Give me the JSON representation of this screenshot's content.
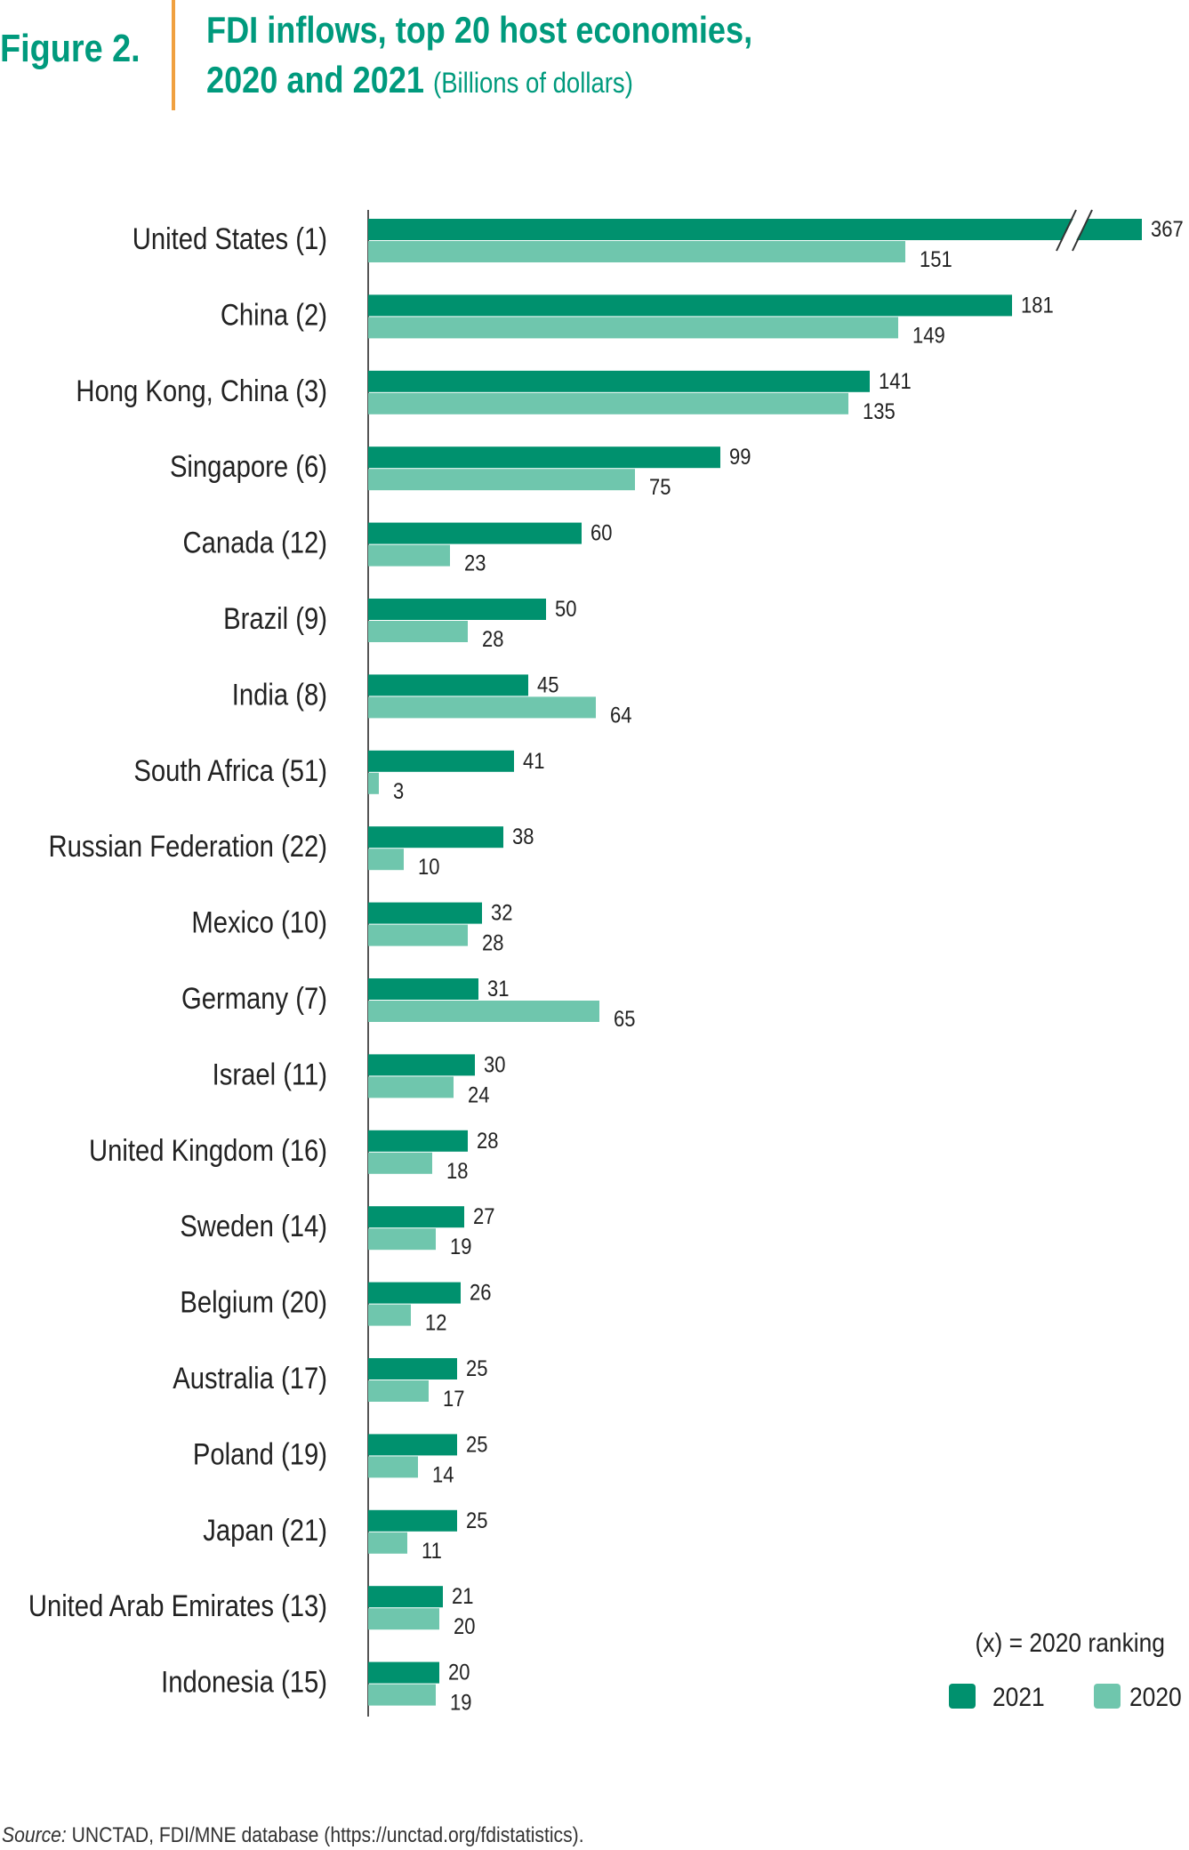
{
  "header": {
    "figure_label": "Figure 2.",
    "title_line1": "FDI inflows, top 20 host economies,",
    "title_line2": "2020 and 2021",
    "title_unit": "(Billions of dollars)"
  },
  "legend": {
    "note": "(x) = 2020  ranking",
    "position": "bottom-right"
  },
  "colors": {
    "series_2021": "#00916e",
    "series_2020": "#6fc6ad",
    "accent": "#009a7d",
    "divider": "#f0a040"
  },
  "chart_data": {
    "type": "bar",
    "orientation": "horizontal",
    "title": "FDI inflows, top 20 host economies, 2020 and 2021",
    "unit": "Billions of dollars",
    "axis_break": "United States 2021 bar broken",
    "grid": false,
    "categories": [
      "United States (1)",
      "China (2)",
      "Hong Kong, China (3)",
      "Singapore (6)",
      "Canada (12)",
      "Brazil (9)",
      "India (8)",
      "South Africa (51)",
      "Russian Federation (22)",
      "Mexico (10)",
      "Germany (7)",
      "Israel (11)",
      "United Kingdom (16)",
      "Sweden (14)",
      "Belgium (20)",
      "Australia (17)",
      "Poland (19)",
      "Japan (21)",
      "United Arab Emirates (13)",
      "Indonesia (15)"
    ],
    "series": [
      {
        "name": "2021",
        "values": [
          367,
          181,
          141,
          99,
          60,
          50,
          45,
          41,
          38,
          32,
          31,
          30,
          28,
          27,
          26,
          25,
          25,
          25,
          21,
          20
        ]
      },
      {
        "name": "2020",
        "values": [
          151,
          149,
          135,
          75,
          23,
          28,
          64,
          3,
          10,
          28,
          65,
          24,
          18,
          19,
          12,
          17,
          14,
          11,
          20,
          19
        ]
      }
    ]
  },
  "source": {
    "label": "Source:",
    "text": "UNCTAD, FDI/MNE database (https://unctad.org/fdistatistics)."
  }
}
